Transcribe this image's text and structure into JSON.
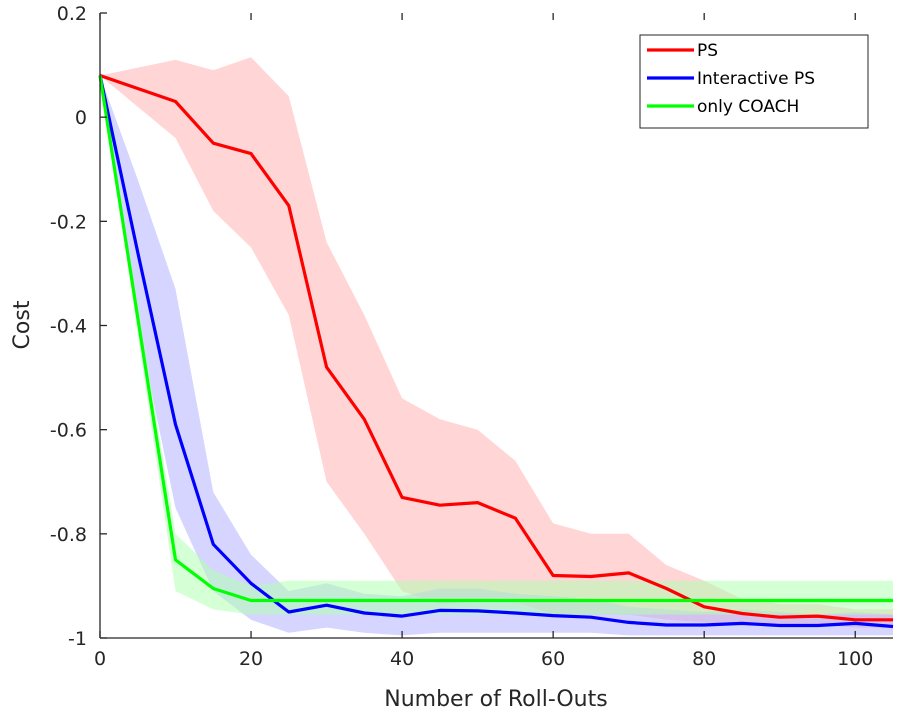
{
  "chart_data": {
    "type": "line",
    "xlabel": "Number of Roll-Outs",
    "ylabel": "Cost",
    "xlim": [
      0,
      105
    ],
    "ylim": [
      -1,
      0.2
    ],
    "xticks": [
      0,
      20,
      40,
      60,
      80,
      100
    ],
    "yticks": [
      -1,
      -0.8,
      -0.6,
      -0.4,
      -0.2,
      0,
      0.2
    ],
    "xtick_labels": [
      "0",
      "20",
      "40",
      "60",
      "80",
      "100"
    ],
    "ytick_labels": [
      "-1",
      "-0.8",
      "-0.6",
      "-0.4",
      "-0.2",
      "0",
      "0.2"
    ],
    "grid": false,
    "legend_position": "top-right",
    "series": [
      {
        "name": "PS",
        "color": "#ff0000",
        "band_color": "#ffb3b3",
        "x": [
          0,
          10,
          15,
          20,
          25,
          30,
          35,
          40,
          45,
          50,
          55,
          60,
          65,
          70,
          75,
          80,
          85,
          90,
          95,
          100,
          105
        ],
        "y": [
          0.08,
          0.03,
          -0.05,
          -0.07,
          -0.17,
          -0.48,
          -0.58,
          -0.73,
          -0.745,
          -0.74,
          -0.77,
          -0.88,
          -0.882,
          -0.875,
          -0.905,
          -0.94,
          -0.953,
          -0.96,
          -0.958,
          -0.965,
          -0.965
        ],
        "lower": [
          0.08,
          -0.04,
          -0.18,
          -0.25,
          -0.38,
          -0.7,
          -0.8,
          -0.91,
          -0.935,
          -0.93,
          -0.93,
          -0.955,
          -0.955,
          -0.955,
          -0.965,
          -0.97,
          -0.975,
          -0.975,
          -0.975,
          -0.98,
          -0.98
        ],
        "upper": [
          0.08,
          0.11,
          0.09,
          0.115,
          0.04,
          -0.24,
          -0.38,
          -0.54,
          -0.58,
          -0.6,
          -0.66,
          -0.78,
          -0.8,
          -0.8,
          -0.86,
          -0.89,
          -0.925,
          -0.935,
          -0.935,
          -0.945,
          -0.945
        ]
      },
      {
        "name": "Interactive PS",
        "color": "#0000ff",
        "band_color": "#b3b3ff",
        "x": [
          0,
          5,
          10,
          15,
          20,
          25,
          30,
          35,
          40,
          45,
          50,
          55,
          60,
          65,
          70,
          75,
          80,
          85,
          90,
          95,
          100,
          105
        ],
        "y": [
          0.08,
          -0.26,
          -0.59,
          -0.82,
          -0.895,
          -0.95,
          -0.937,
          -0.952,
          -0.958,
          -0.947,
          -0.948,
          -0.952,
          -0.957,
          -0.96,
          -0.97,
          -0.975,
          -0.975,
          -0.972,
          -0.976,
          -0.976,
          -0.972,
          -0.978
        ],
        "lower": [
          0.08,
          -0.4,
          -0.75,
          -0.91,
          -0.965,
          -0.99,
          -0.98,
          -0.99,
          -0.995,
          -0.99,
          -0.99,
          -0.99,
          -0.99,
          -0.99,
          -0.995,
          -0.995,
          -0.995,
          -0.995,
          -0.995,
          -0.995,
          -0.995,
          -0.995
        ],
        "upper": [
          0.08,
          -0.12,
          -0.33,
          -0.72,
          -0.84,
          -0.91,
          -0.895,
          -0.915,
          -0.92,
          -0.905,
          -0.905,
          -0.915,
          -0.92,
          -0.925,
          -0.94,
          -0.945,
          -0.95,
          -0.945,
          -0.95,
          -0.955,
          -0.95,
          -0.955
        ]
      },
      {
        "name": "only COACH",
        "color": "#00ff00",
        "band_color": "#b3ffb3",
        "x": [
          0,
          10,
          15,
          20,
          25,
          30,
          40,
          50,
          60,
          70,
          80,
          90,
          100,
          105
        ],
        "y": [
          0.08,
          -0.85,
          -0.905,
          -0.928,
          -0.928,
          -0.928,
          -0.928,
          -0.928,
          -0.928,
          -0.928,
          -0.928,
          -0.928,
          -0.928,
          -0.928
        ],
        "lower": [
          0.08,
          -0.91,
          -0.945,
          -0.955,
          -0.955,
          -0.955,
          -0.955,
          -0.955,
          -0.955,
          -0.955,
          -0.955,
          -0.955,
          -0.955,
          -0.955
        ],
        "upper": [
          0.08,
          -0.8,
          -0.87,
          -0.9,
          -0.89,
          -0.89,
          -0.89,
          -0.89,
          -0.89,
          -0.89,
          -0.89,
          -0.89,
          -0.89,
          -0.89
        ]
      }
    ]
  }
}
